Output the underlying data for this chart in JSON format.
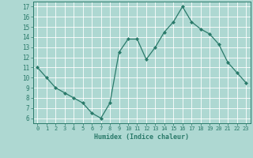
{
  "x": [
    0,
    1,
    2,
    3,
    4,
    5,
    6,
    7,
    8,
    9,
    10,
    11,
    12,
    13,
    14,
    15,
    16,
    17,
    18,
    19,
    20,
    21,
    22,
    23
  ],
  "y": [
    11,
    10,
    9,
    8.5,
    8,
    7.5,
    6.5,
    6,
    7.5,
    12.5,
    13.8,
    13.8,
    11.8,
    13,
    14.5,
    15.5,
    17,
    15.5,
    14.8,
    14.3,
    13.3,
    11.5,
    10.5,
    9.5
  ],
  "xlabel": "Humidex (Indice chaleur)",
  "line_color": "#2a7a6a",
  "marker_color": "#2a7a6a",
  "bg_color": "#aed8d2",
  "grid_color": "#ffffff",
  "tick_label_color": "#2a7a6a",
  "xlabel_color": "#2a7a6a",
  "xlim": [
    -0.5,
    23.5
  ],
  "ylim": [
    5.5,
    17.5
  ],
  "yticks": [
    6,
    7,
    8,
    9,
    10,
    11,
    12,
    13,
    14,
    15,
    16,
    17
  ],
  "xticks": [
    0,
    1,
    2,
    3,
    4,
    5,
    6,
    7,
    8,
    9,
    10,
    11,
    12,
    13,
    14,
    15,
    16,
    17,
    18,
    19,
    20,
    21,
    22,
    23
  ]
}
